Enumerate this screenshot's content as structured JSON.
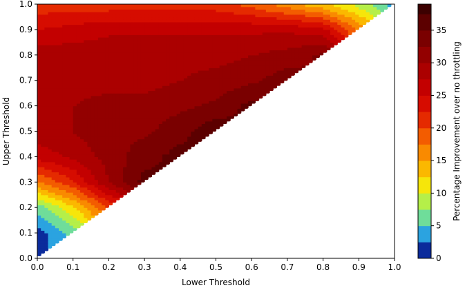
{
  "chart_data": {
    "type": "heatmap",
    "subtype": "filled-contour",
    "xlabel": "Lower Threshold",
    "ylabel": "Upper Threshold",
    "colorbar_label": "Percentage Improvement over no throttling",
    "xlim": [
      0.0,
      1.0
    ],
    "ylim": [
      0.0,
      1.0
    ],
    "x_ticks": [
      "0.0",
      "0.1",
      "0.2",
      "0.3",
      "0.4",
      "0.5",
      "0.6",
      "0.7",
      "0.8",
      "0.9",
      "1.0"
    ],
    "y_ticks": [
      "0.0",
      "0.1",
      "0.2",
      "0.3",
      "0.4",
      "0.5",
      "0.6",
      "0.7",
      "0.8",
      "0.9",
      "1.0"
    ],
    "colorbar_range": [
      0,
      39
    ],
    "colorbar_ticks": [
      "0",
      "5",
      "10",
      "15",
      "20",
      "25",
      "30",
      "35"
    ],
    "colorbar_tick_values": [
      0,
      5,
      10,
      15,
      20,
      25,
      30,
      35
    ],
    "levels": [
      0,
      2.5,
      5,
      7.5,
      10,
      12.5,
      15,
      17.5,
      20,
      22.5,
      25,
      27.5,
      30,
      32.5,
      35,
      37.5,
      39
    ],
    "level_colors": [
      "#0b2b9b",
      "#2ba3e0",
      "#6fdd9a",
      "#b5ef49",
      "#f6e60a",
      "#fbb800",
      "#f98a00",
      "#f35c00",
      "#e52a00",
      "#d60c00",
      "#c30000",
      "#ab0000",
      "#930000",
      "#7a0000",
      "#5c0000",
      "#3c0000"
    ],
    "valid_region": "upper > lower",
    "grid": [
      {
        "upper": 1.0,
        "values": [
          21,
          21,
          21,
          21,
          21,
          21,
          19,
          16,
          13,
          9,
          4
        ]
      },
      {
        "upper": 0.9,
        "values": [
          25,
          26,
          27,
          27,
          27,
          27,
          27,
          27,
          26,
          17
        ]
      },
      {
        "upper": 0.8,
        "values": [
          29,
          29,
          29,
          29,
          29,
          29,
          30,
          31,
          33
        ]
      },
      {
        "upper": 0.7,
        "values": [
          29,
          29,
          29,
          29,
          30,
          31,
          32,
          34
        ]
      },
      {
        "upper": 0.6,
        "values": [
          29,
          30,
          31,
          31,
          32,
          33,
          36
        ]
      },
      {
        "upper": 0.5,
        "values": [
          29,
          30,
          32,
          32,
          34,
          37
        ]
      },
      {
        "upper": 0.4,
        "values": [
          26,
          28,
          31,
          34,
          36
        ]
      },
      {
        "upper": 0.3,
        "values": [
          17,
          22,
          30,
          36
        ]
      },
      {
        "upper": 0.2,
        "values": [
          6,
          12,
          20
        ]
      },
      {
        "upper": 0.1,
        "values": [
          1,
          6
        ]
      }
    ]
  }
}
